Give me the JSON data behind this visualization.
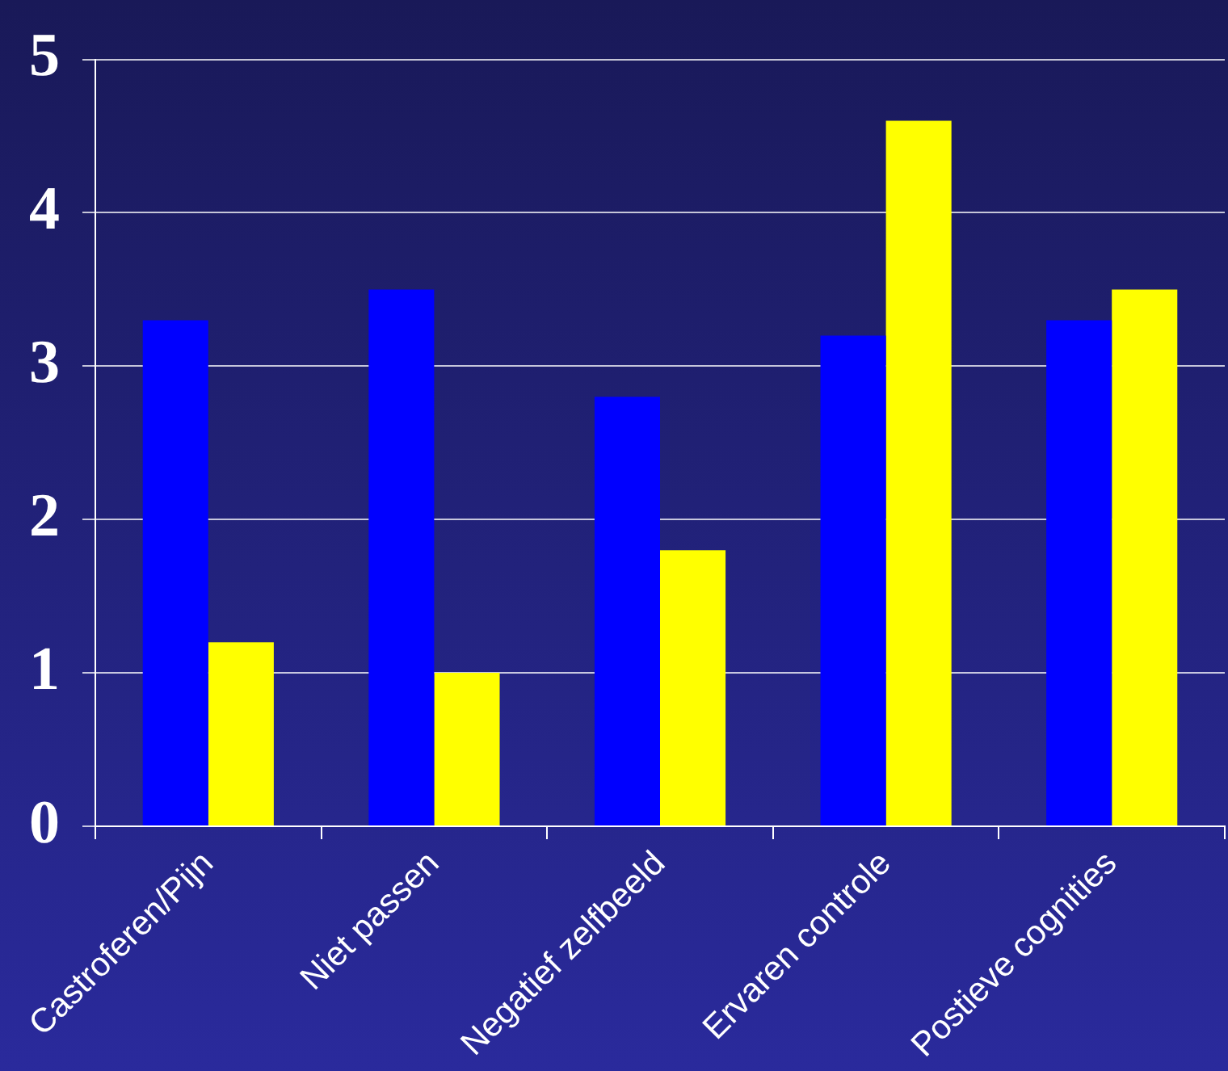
{
  "chart_data": {
    "type": "bar",
    "categories": [
      "Castroferen/Pijn",
      "Niet passen",
      "Negatief zelfbeeld",
      "Ervaren controle",
      "Postieve cognities"
    ],
    "series": [
      {
        "color": "#0000ff",
        "values": [
          3.3,
          3.5,
          2.8,
          3.2,
          3.3
        ]
      },
      {
        "color": "#ffff00",
        "values": [
          1.2,
          1.0,
          1.8,
          4.6,
          3.5
        ]
      }
    ],
    "ylim": [
      0,
      5
    ],
    "yticks": [
      0,
      1,
      2,
      3,
      4,
      5
    ],
    "grid": "y"
  }
}
